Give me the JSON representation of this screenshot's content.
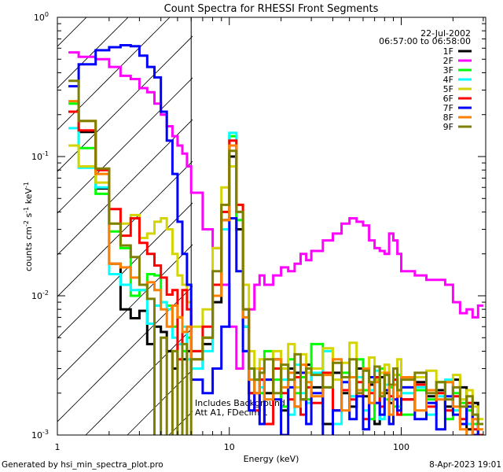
{
  "chart_data": {
    "type": "line",
    "title": "Count Spectra for RHESSI Front Segments",
    "xlabel": "Energy (keV)",
    "ylabel_parts": [
      {
        "text": "counts cm",
        "sup": "-2"
      },
      {
        "text": " s",
        "sup": "-1"
      },
      {
        "text": " keV",
        "sup": "-1"
      }
    ],
    "xscale": "log",
    "yscale": "log",
    "xlim": [
      1,
      310
    ],
    "ylim": [
      0.001,
      1
    ],
    "xticks": [
      1,
      10,
      100
    ],
    "xticklabels": [
      "1",
      "10",
      "100"
    ],
    "yticks": [
      1,
      0.1,
      0.01,
      0.001
    ],
    "ytick_base": "10",
    "ytick_exponents": [
      "0",
      "-1",
      "-2",
      "-3"
    ],
    "excluded_below_keV": 6,
    "date": "22-Jul-2002",
    "time_range": "06:57:00 to 06:58:00",
    "annotations": [
      "Includes Background",
      "Att A1, FDecim 1"
    ],
    "legend_position": "top-right",
    "energy_edges": [
      1.16,
      1.33,
      1.67,
      2.0,
      2.33,
      2.67,
      3.0,
      3.33,
      3.67,
      4.0,
      4.33,
      4.67,
      5.0,
      5.33,
      5.67,
      6.0,
      7,
      8,
      9,
      10,
      11,
      12,
      13,
      14,
      15,
      16,
      18,
      20,
      22,
      24,
      26,
      28,
      30,
      35,
      40,
      45,
      50,
      55,
      60,
      65,
      70,
      75,
      80,
      85,
      90,
      95,
      100,
      120,
      140,
      160,
      180,
      200,
      220,
      240,
      260,
      280,
      300
    ],
    "series": [
      {
        "name": "1F",
        "color": "#000000",
        "values": [
          0.21,
          0.15,
          0.059,
          0.017,
          0.008,
          0.0069,
          0.0078,
          0.0045,
          0.006,
          0.0055,
          0.004,
          0.003,
          0.0045,
          0.0035,
          0.004,
          0.003,
          0.0045,
          0.009,
          0.035,
          0.1,
          0.03,
          0.006,
          0.002,
          0.003,
          0.0025,
          0.002,
          0.0035,
          0.0015,
          0.003,
          0.0028,
          0.0018,
          0.0032,
          0.0022,
          0.0012,
          0.0028,
          0.002,
          0.0016,
          0.003,
          0.0019,
          0.0023,
          0.0012,
          0.0026,
          0.002,
          0.0017,
          0.0025,
          0.0021,
          0.0018,
          0.0024,
          0.0019,
          0.0021,
          0.0016,
          0.0025,
          0.0022,
          0.0011,
          0.0017,
          0.0012
        ]
      },
      {
        "name": "2F",
        "color": "#ff00ff",
        "values": [
          0.56,
          0.52,
          0.5,
          0.44,
          0.38,
          0.36,
          0.31,
          0.29,
          0.24,
          0.2,
          0.165,
          0.14,
          0.12,
          0.105,
          0.085,
          0.055,
          0.03,
          0.022,
          0.012,
          0.006,
          0.003,
          0.004,
          0.008,
          0.012,
          0.014,
          0.012,
          0.014,
          0.016,
          0.015,
          0.017,
          0.02,
          0.018,
          0.021,
          0.025,
          0.028,
          0.033,
          0.036,
          0.034,
          0.032,
          0.025,
          0.022,
          0.021,
          0.02,
          0.028,
          0.025,
          0.02,
          0.015,
          0.014,
          0.013,
          0.013,
          0.012,
          0.009,
          0.0075,
          0.008,
          0.007,
          0.0085
        ]
      },
      {
        "name": "3F",
        "color": "#00ff00",
        "values": [
          0.24,
          0.115,
          0.054,
          0.029,
          0.022,
          0.01,
          0.011,
          0.0143,
          0.014,
          0.009,
          0.0085,
          0.006,
          0.007,
          0.004,
          0.005,
          0.004,
          0.005,
          0.012,
          0.04,
          0.14,
          0.035,
          0.007,
          0.003,
          0.0025,
          0.002,
          0.004,
          0.0025,
          0.0016,
          0.0035,
          0.002,
          0.0026,
          0.0018,
          0.0045,
          0.0022,
          0.0015,
          0.0028,
          0.0019,
          0.0035,
          0.0021,
          0.0013,
          0.0025,
          0.003,
          0.0018,
          0.0022,
          0.0016,
          0.0027,
          0.0014,
          0.0021,
          0.0018,
          0.0024,
          0.0013,
          0.002,
          0.0017,
          0.0015,
          0.0012,
          0.001
        ]
      },
      {
        "name": "4F",
        "color": "#00ffff",
        "values": [
          0.16,
          0.083,
          0.06,
          0.0143,
          0.012,
          0.011,
          0.011,
          0.0063,
          0.0085,
          0.009,
          0.008,
          0.005,
          0.0045,
          0.006,
          0.0035,
          0.003,
          0.004,
          0.01,
          0.03,
          0.148,
          0.04,
          0.006,
          0.002,
          0.003,
          0.0022,
          0.0018,
          0.003,
          0.0025,
          0.0014,
          0.0032,
          0.002,
          0.0017,
          0.0028,
          0.004,
          0.0012,
          0.0024,
          0.0019,
          0.0026,
          0.0015,
          0.0021,
          0.0029,
          0.0013,
          0.0023,
          0.0018,
          0.0025,
          0.0016,
          0.002,
          0.0022,
          0.0014,
          0.0019,
          0.0025,
          0.0015,
          0.0018,
          0.0012,
          0.0014,
          0.001
        ]
      },
      {
        "name": "5F",
        "color": "#d4d400",
        "values": [
          0.12,
          0.085,
          0.065,
          0.033,
          0.033,
          0.038,
          0.026,
          0.028,
          0.034,
          0.036,
          0.03,
          0.02,
          0.014,
          0.012,
          0.009,
          0.006,
          0.008,
          0.022,
          0.06,
          0.085,
          0.045,
          0.012,
          0.004,
          0.003,
          0.0035,
          0.0025,
          0.004,
          0.003,
          0.0045,
          0.0022,
          0.0038,
          0.0028,
          0.003,
          0.0042,
          0.0025,
          0.0033,
          0.0046,
          0.0021,
          0.003,
          0.0036,
          0.0025,
          0.0028,
          0.0032,
          0.0023,
          0.0027,
          0.0035,
          0.0022,
          0.0026,
          0.0029,
          0.002,
          0.0024,
          0.0027,
          0.0018,
          0.0021,
          0.0016,
          0.0013
        ]
      },
      {
        "name": "6F",
        "color": "#ff0000",
        "values": [
          0.21,
          0.154,
          0.08,
          0.042,
          0.027,
          0.036,
          0.024,
          0.02,
          0.0165,
          0.0135,
          0.0102,
          0.011,
          0.0035,
          0.011,
          0.008,
          0.004,
          0.006,
          0.012,
          0.04,
          0.13,
          0.045,
          0.008,
          0.002,
          0.0015,
          0.0025,
          0.0012,
          0.003,
          0.002,
          0.0018,
          0.0026,
          0.0014,
          0.0022,
          0.0017,
          0.0028,
          0.0015,
          0.0021,
          0.0018,
          0.0024,
          0.0013,
          0.002,
          0.0026,
          0.0016,
          0.0021,
          0.0019,
          0.0025,
          0.0014,
          0.0018,
          0.0023,
          0.0016,
          0.002,
          0.0015,
          0.0019,
          0.0013,
          0.0017,
          0.0011,
          0.001
        ]
      },
      {
        "name": "7F",
        "color": "#0000ff",
        "values": [
          0.32,
          0.46,
          0.58,
          0.61,
          0.63,
          0.62,
          0.53,
          0.44,
          0.37,
          0.21,
          0.13,
          0.075,
          0.034,
          0.02,
          0.012,
          0.0025,
          0.002,
          0.003,
          0.006,
          0.036,
          0.015,
          0.004,
          0.0015,
          0.002,
          0.0012,
          0.0025,
          0.0018,
          0.001,
          0.0022,
          0.0016,
          0.0028,
          0.0012,
          0.002,
          0.0009,
          0.0015,
          0.0024,
          0.0013,
          0.0019,
          0.0011,
          0.0026,
          0.0017,
          0.0014,
          0.0021,
          0.0012,
          0.0018,
          0.0015,
          0.0022,
          0.0013,
          0.0017,
          0.0011,
          0.0019,
          0.0014,
          0.0012,
          0.0016,
          0.001,
          0.0012
        ]
      },
      {
        "name": "8F",
        "color": "#ff8000",
        "values": [
          0.25,
          0.18,
          0.075,
          0.017,
          0.016,
          0.0135,
          0.012,
          0.0125,
          0.011,
          0.008,
          0.006,
          0.0085,
          0.007,
          0.0055,
          0.006,
          0.0035,
          0.005,
          0.01,
          0.035,
          0.12,
          0.04,
          0.007,
          0.0025,
          0.002,
          0.003,
          0.0018,
          0.0035,
          0.0022,
          0.0028,
          0.0016,
          0.0032,
          0.0024,
          0.0019,
          0.0027,
          0.0035,
          0.0015,
          0.0026,
          0.0021,
          0.003,
          0.0017,
          0.0024,
          0.002,
          0.0028,
          0.0014,
          0.0023,
          0.0019,
          0.0026,
          0.0015,
          0.0021,
          0.0018,
          0.0024,
          0.0016,
          0.0011,
          0.0009,
          0.0013,
          0.0011
        ]
      },
      {
        "name": "9F",
        "color": "#808000",
        "values": [
          0.35,
          0.18,
          0.082,
          0.033,
          0.023,
          0.019,
          0.012,
          0.0095,
          0.0007,
          0.005,
          0.0006,
          0.004,
          0.0008,
          0.0045,
          0.0007,
          0.0035,
          0.005,
          0.015,
          0.045,
          0.11,
          0.04,
          0.008,
          0.003,
          0.0025,
          0.0028,
          0.0035,
          0.002,
          0.0032,
          0.0025,
          0.0038,
          0.0018,
          0.003,
          0.0027,
          0.0022,
          0.0033,
          0.0026,
          0.0035,
          0.002,
          0.0029,
          0.0024,
          0.0031,
          0.0019,
          0.0027,
          0.0023,
          0.003,
          0.0021,
          0.0025,
          0.0028,
          0.002,
          0.0024,
          0.0018,
          0.0022,
          0.0016,
          0.0019,
          0.0014,
          0.0012
        ]
      }
    ]
  },
  "footer": {
    "generated_by": "Generated by hsi_min_spectra_plot.pro",
    "timestamp": "8-Apr-2023 19:01"
  }
}
